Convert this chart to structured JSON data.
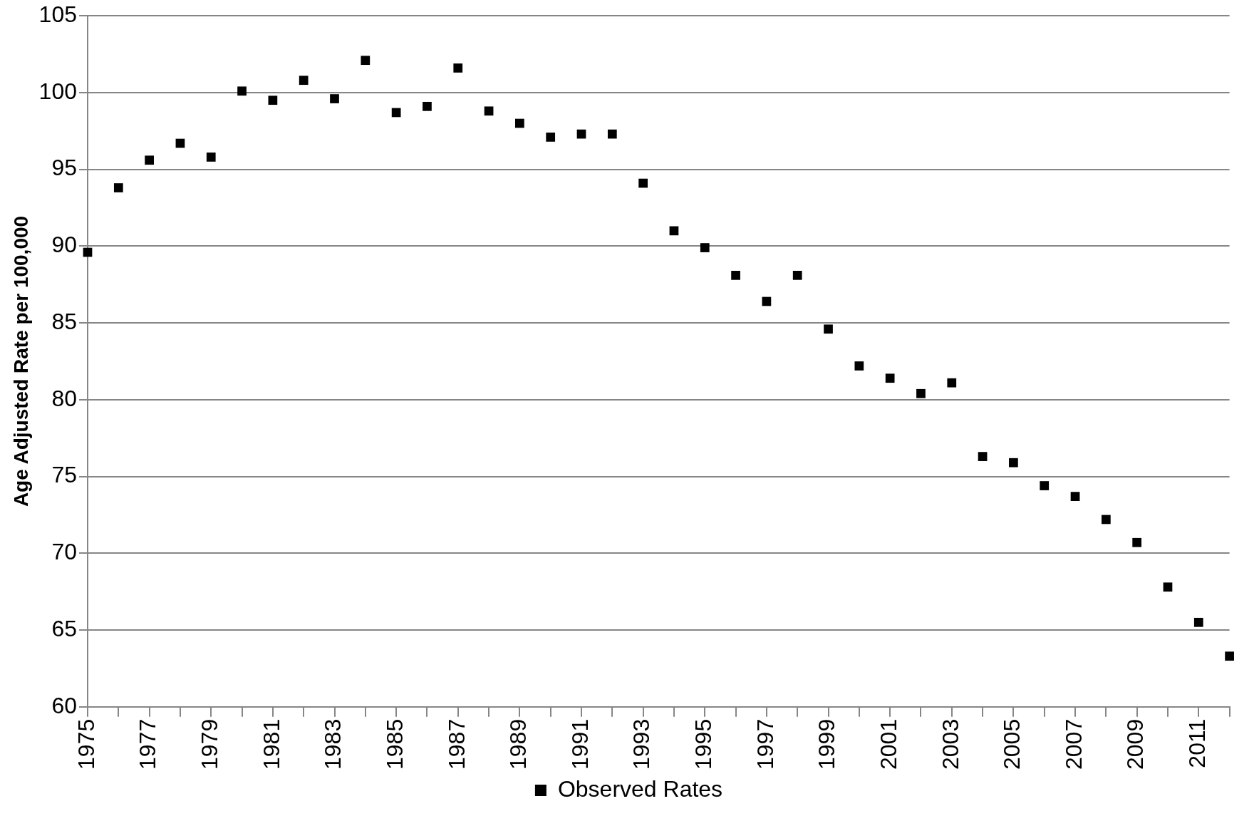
{
  "chart_data": {
    "type": "scatter",
    "ylabel": "Age Adjusted Rate per 100,000",
    "categories": [
      "1975",
      null,
      "1977",
      null,
      "1979",
      null,
      "1981",
      null,
      "1983",
      null,
      "1985",
      null,
      "1987",
      null,
      "1989",
      null,
      "1991",
      null,
      "1993",
      null,
      "1995",
      null,
      "1997",
      null,
      "1999",
      null,
      "2001",
      null,
      "2003",
      null,
      "2005",
      null,
      "2007",
      null,
      "2009",
      null,
      "2011",
      null
    ],
    "series": [
      {
        "name": "Observed Rates",
        "color": "#000000",
        "values": [
          89.6,
          93.8,
          95.6,
          96.7,
          95.8,
          100.1,
          99.5,
          100.8,
          99.6,
          102.1,
          98.7,
          99.1,
          101.6,
          98.8,
          98.0,
          97.1,
          97.3,
          97.3,
          94.1,
          91.0,
          89.9,
          88.1,
          86.4,
          88.1,
          84.6,
          82.2,
          81.4,
          80.4,
          81.1,
          76.3,
          75.9,
          74.4,
          73.7,
          72.2,
          70.7,
          67.8,
          65.5,
          63.3
        ]
      }
    ],
    "ylim": [
      60,
      105
    ],
    "yticks": [
      60,
      65,
      70,
      75,
      80,
      85,
      90,
      95,
      100,
      105
    ],
    "grid": "y",
    "legend": "bottom",
    "marker": "square"
  }
}
